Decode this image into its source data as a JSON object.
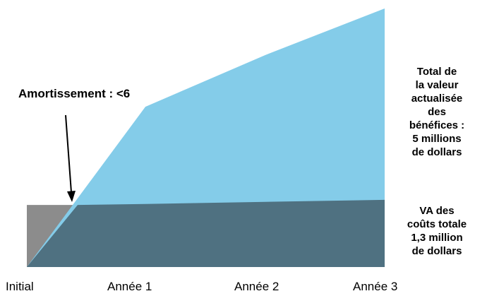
{
  "chart_data": {
    "type": "area",
    "categories": [
      "Initial",
      "Année 1",
      "Année 2",
      "Année 3"
    ],
    "series": [
      {
        "name": "Total de\nla valeur\nactualisée\ndes\nbénéfices :\n5 millions\nde dollars",
        "values": [
          0,
          3.1,
          4.1,
          5.0
        ],
        "color": "#84cce9"
      },
      {
        "name": "VA des\ncoûts totale\n1,3 million\nde dollars",
        "values": [
          1.2,
          1.22,
          1.26,
          1.3
        ],
        "color": "#4f7181"
      }
    ],
    "initial_cost_color": "#8c8c8c",
    "annotation": {
      "text": "Amortissement : <6"
    },
    "ylim": [
      0,
      5
    ],
    "grid": false,
    "legend": "right"
  }
}
